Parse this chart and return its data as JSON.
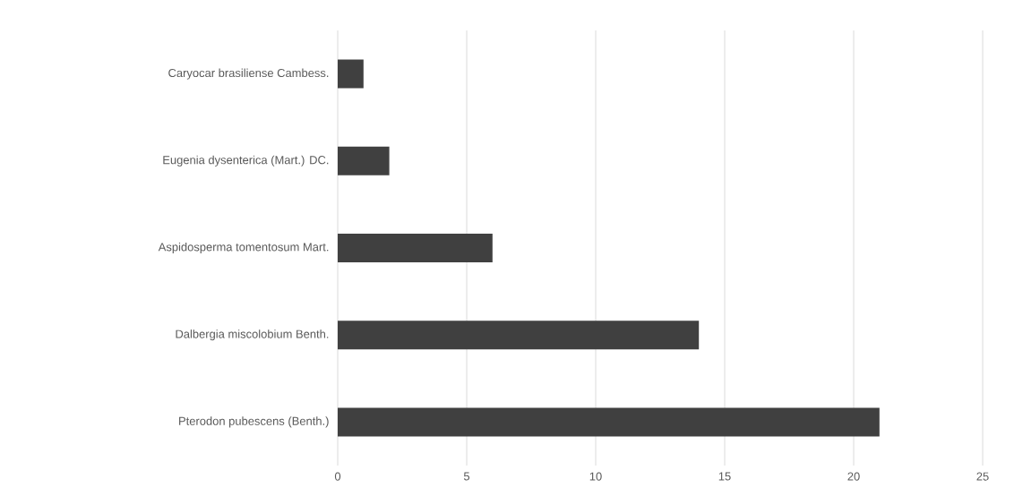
{
  "chart_data": {
    "type": "bar",
    "orientation": "horizontal",
    "categories": [
      "Caryocar brasiliense Cambess.",
      "Eugenia dysenterica (Mart.) DC.",
      "Aspidosperma tomentosum Mart.",
      "Dalbergia miscolobium Benth.",
      "Pterodon pubescens (Benth.)"
    ],
    "values": [
      1,
      2,
      6,
      14,
      21
    ],
    "color": "#404040",
    "xlim": [
      0,
      25
    ],
    "xticks": [
      0,
      5,
      10,
      15,
      20,
      25
    ],
    "grid": "x"
  }
}
